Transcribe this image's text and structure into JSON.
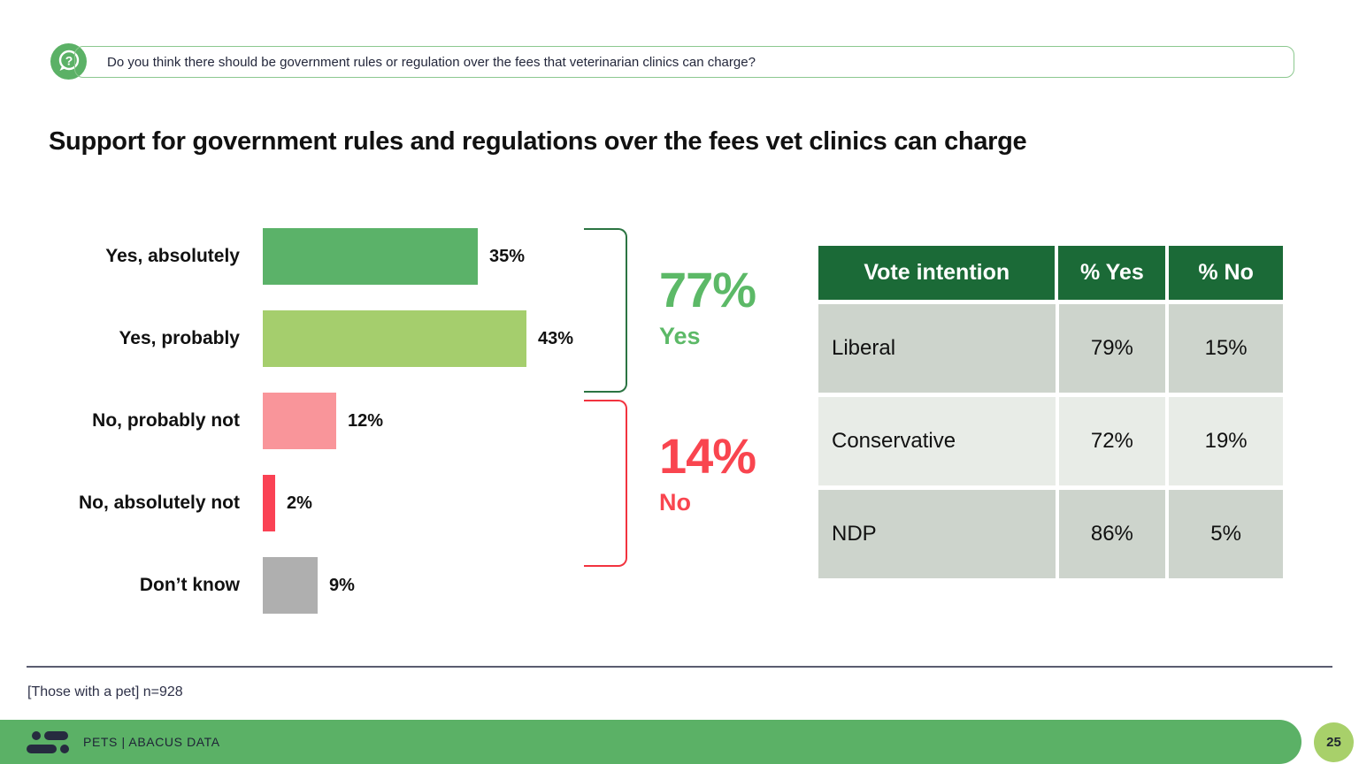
{
  "question": {
    "text": "Do you think there should be government rules or regulation over the fees that veterinarian clinics can charge?"
  },
  "title": "Support for government rules and regulations over the fees vet clinics can charge",
  "chart_data": {
    "type": "bar",
    "orientation": "horizontal",
    "title": "Support for government rules and regulations over the fees vet clinics can charge",
    "categories": [
      "Yes, absolutely",
      "Yes, probably",
      "No, probably not",
      "No, absolutely not",
      "Don’t know"
    ],
    "values": [
      35,
      43,
      12,
      2,
      9
    ],
    "value_labels": [
      "35%",
      "43%",
      "12%",
      "2%",
      "9%"
    ],
    "bar_colors": [
      "#5BB269",
      "#A5CE6D",
      "#F9959A",
      "#FA4254",
      "#AFAFAF"
    ],
    "xlim": [
      0,
      50
    ],
    "grid": false,
    "summary_groups": [
      {
        "label": "Yes",
        "value": "77%",
        "color": "#5CB967",
        "bracket_color": "#2B7442",
        "members": [
          "Yes, absolutely",
          "Yes, probably"
        ]
      },
      {
        "label": "No",
        "value": "14%",
        "color": "#F9454F",
        "bracket_color": "#F2333F",
        "members": [
          "No, probably not",
          "No, absolutely not"
        ]
      }
    ]
  },
  "table": {
    "headers": [
      "Vote intention",
      "% Yes",
      "% No"
    ],
    "rows": [
      [
        "Liberal",
        "79%",
        "15%"
      ],
      [
        "Conservative",
        "72%",
        "19%"
      ],
      [
        "NDP",
        "86%",
        "5%"
      ]
    ]
  },
  "footnote": "[Those with a pet] n=928",
  "footer": {
    "brand": "PETS  |  ABACUS DATA",
    "page": "25"
  },
  "colors": {
    "accent_green": "#5BB166",
    "table_header_green": "#1B6A37",
    "row_gray": "#CDD4CC",
    "row_light": "#E8ECE7",
    "badge_green": "#A8D06A",
    "navy": "#262B3F"
  }
}
